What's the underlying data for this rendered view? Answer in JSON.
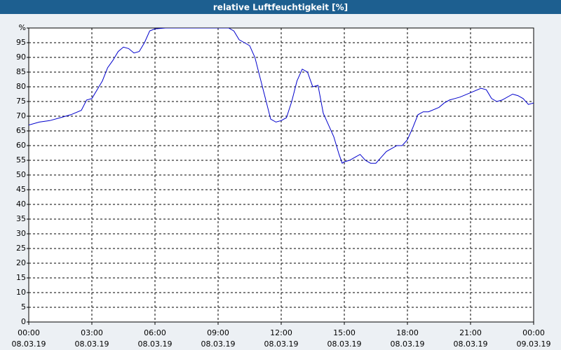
{
  "chart_data": {
    "type": "line",
    "title": "relative Luftfeuchtigkeit [%]",
    "x": [
      0,
      0.5,
      1,
      1.5,
      2,
      2.5,
      2.75,
      3,
      3.25,
      3.5,
      3.75,
      4,
      4.25,
      4.5,
      4.75,
      5,
      5.25,
      5.5,
      5.75,
      6,
      6.5,
      7,
      8,
      9,
      9.5,
      9.75,
      10,
      10.25,
      10.5,
      10.75,
      11,
      11.25,
      11.5,
      11.75,
      12,
      12.25,
      12.5,
      12.75,
      13,
      13.25,
      13.5,
      13.75,
      14,
      14.25,
      14.5,
      14.75,
      14.9,
      15,
      15.25,
      15.5,
      15.75,
      16,
      16.25,
      16.5,
      16.75,
      17,
      17.5,
      17.75,
      18,
      18.25,
      18.5,
      18.75,
      19,
      19.5,
      19.75,
      20,
      20.25,
      20.5,
      21,
      21.5,
      21.75,
      22,
      22.25,
      22.5,
      23,
      23.25,
      23.5,
      23.75,
      24
    ],
    "series": [
      {
        "color": "#0000cc",
        "values": [
          67,
          68,
          68.5,
          69.5,
          70.5,
          72,
          75.5,
          76,
          79,
          82,
          86.5,
          89,
          92,
          93.5,
          93,
          91.5,
          92,
          95,
          99,
          99.7,
          100,
          100,
          100,
          100,
          100,
          99,
          96,
          95,
          94,
          90,
          83,
          76,
          69,
          68,
          68.5,
          69.5,
          75,
          82,
          86,
          85,
          80,
          80.5,
          71,
          67,
          63,
          57,
          54,
          54.5,
          55,
          56,
          57,
          55,
          54,
          54,
          56,
          58,
          60,
          60,
          62,
          66,
          70.5,
          71.5,
          71.5,
          73,
          74.5,
          75.5,
          76,
          76.5,
          78,
          79.5,
          79,
          76,
          75,
          75.5,
          77.5,
          77,
          76,
          74,
          74.5
        ]
      }
    ],
    "xlim": [
      0,
      24
    ],
    "xticks": [
      {
        "value": 0,
        "label": "00:00 08.03.19"
      },
      {
        "value": 3,
        "label": "03:00 08.03.19"
      },
      {
        "value": 6,
        "label": "06:00 08.03.19"
      },
      {
        "value": 9,
        "label": "09:00 08.03.19"
      },
      {
        "value": 12,
        "label": "12:00 08.03.19"
      },
      {
        "value": 15,
        "label": "15:00 08.03.19"
      },
      {
        "value": 18,
        "label": "18:00 08.03.19"
      },
      {
        "value": 21,
        "label": "21:00 08.03.19"
      },
      {
        "value": 24,
        "label": "00:00 09.03.19"
      }
    ],
    "ylim": [
      0,
      100
    ],
    "yticks": [
      0,
      5,
      10,
      15,
      20,
      25,
      30,
      35,
      40,
      45,
      50,
      55,
      60,
      65,
      70,
      75,
      80,
      85,
      90,
      95,
      {
        "value": 100,
        "label": "%"
      }
    ],
    "grid": true
  }
}
